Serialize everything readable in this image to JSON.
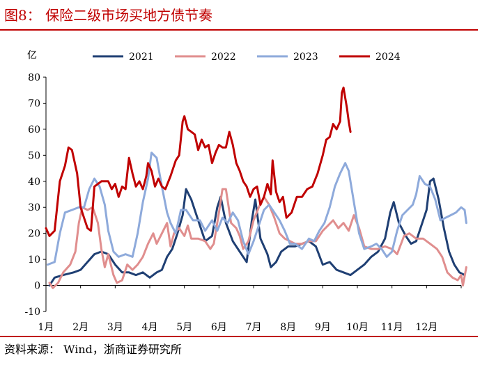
{
  "header": {
    "title": "图8：  保险二级市场买地方债节奏"
  },
  "footer": {
    "source": "资料来源：  Wind，浙商证券研究所"
  },
  "chart_data": {
    "type": "line",
    "title": "保险二级市场买地方债节奏",
    "unit": "亿",
    "xlabel": "",
    "ylabel": "亿",
    "xlim": [
      1,
      13
    ],
    "ylim": [
      -10,
      80
    ],
    "yticks": [
      -10,
      0,
      10,
      20,
      30,
      40,
      50,
      60,
      70,
      80
    ],
    "month_labels": [
      "1月",
      "2月",
      "3月",
      "4月",
      "5月",
      "6月",
      "7月",
      "8月",
      "9月",
      "10月",
      "11月",
      "12月"
    ],
    "legend": {
      "position": "top"
    },
    "grid": false,
    "series": [
      {
        "name": "2021",
        "color": "#1f3f73",
        "points": [
          [
            1.1,
            0
          ],
          [
            1.25,
            3
          ],
          [
            1.5,
            4
          ],
          [
            1.8,
            5
          ],
          [
            2.0,
            6
          ],
          [
            2.2,
            9
          ],
          [
            2.4,
            12
          ],
          [
            2.6,
            13
          ],
          [
            2.8,
            12
          ],
          [
            3.0,
            8
          ],
          [
            3.2,
            5
          ],
          [
            3.4,
            5
          ],
          [
            3.6,
            4
          ],
          [
            3.8,
            5
          ],
          [
            4.0,
            3
          ],
          [
            4.2,
            5
          ],
          [
            4.35,
            6
          ],
          [
            4.5,
            11
          ],
          [
            4.65,
            14
          ],
          [
            4.8,
            20
          ],
          [
            4.95,
            27
          ],
          [
            5.05,
            37
          ],
          [
            5.2,
            33
          ],
          [
            5.4,
            25
          ],
          [
            5.6,
            17
          ],
          [
            5.8,
            19
          ],
          [
            5.95,
            30
          ],
          [
            6.05,
            34
          ],
          [
            6.2,
            24
          ],
          [
            6.4,
            17
          ],
          [
            6.6,
            13
          ],
          [
            6.8,
            9
          ],
          [
            6.95,
            25
          ],
          [
            7.05,
            33
          ],
          [
            7.2,
            18
          ],
          [
            7.4,
            12
          ],
          [
            7.5,
            7
          ],
          [
            7.65,
            9
          ],
          [
            7.8,
            13
          ],
          [
            8.0,
            15
          ],
          [
            8.2,
            15
          ],
          [
            8.4,
            16
          ],
          [
            8.6,
            17
          ],
          [
            8.8,
            15
          ],
          [
            9.0,
            8
          ],
          [
            9.2,
            9
          ],
          [
            9.4,
            6
          ],
          [
            9.6,
            5
          ],
          [
            9.8,
            4
          ],
          [
            10.0,
            6
          ],
          [
            10.2,
            8
          ],
          [
            10.4,
            11
          ],
          [
            10.6,
            13
          ],
          [
            10.8,
            18
          ],
          [
            10.95,
            28
          ],
          [
            11.05,
            32
          ],
          [
            11.2,
            24
          ],
          [
            11.4,
            19
          ],
          [
            11.55,
            16
          ],
          [
            11.7,
            17
          ],
          [
            11.85,
            23
          ],
          [
            12.0,
            29
          ],
          [
            12.1,
            40
          ],
          [
            12.2,
            41
          ],
          [
            12.35,
            33
          ],
          [
            12.5,
            22
          ],
          [
            12.65,
            13
          ],
          [
            12.8,
            8
          ],
          [
            12.95,
            5
          ],
          [
            13.1,
            4
          ]
        ]
      },
      {
        "name": "2022",
        "color": "#e08e8e",
        "points": [
          [
            1.1,
            1
          ],
          [
            1.2,
            -1
          ],
          [
            1.35,
            1
          ],
          [
            1.5,
            5
          ],
          [
            1.7,
            8
          ],
          [
            1.85,
            13
          ],
          [
            1.95,
            24
          ],
          [
            2.05,
            30
          ],
          [
            2.2,
            29
          ],
          [
            2.35,
            30
          ],
          [
            2.5,
            24
          ],
          [
            2.6,
            14
          ],
          [
            2.7,
            7
          ],
          [
            2.8,
            12
          ],
          [
            2.95,
            4
          ],
          [
            3.05,
            1
          ],
          [
            3.2,
            2
          ],
          [
            3.35,
            8
          ],
          [
            3.5,
            6
          ],
          [
            3.65,
            8
          ],
          [
            3.8,
            11
          ],
          [
            3.95,
            16
          ],
          [
            4.1,
            20
          ],
          [
            4.2,
            16
          ],
          [
            4.35,
            20
          ],
          [
            4.5,
            24
          ],
          [
            4.6,
            15
          ],
          [
            4.7,
            20
          ],
          [
            4.85,
            22
          ],
          [
            5.0,
            19
          ],
          [
            5.1,
            23
          ],
          [
            5.2,
            18
          ],
          [
            5.4,
            18
          ],
          [
            5.6,
            17
          ],
          [
            5.75,
            14
          ],
          [
            5.85,
            16
          ],
          [
            6.0,
            28
          ],
          [
            6.1,
            37
          ],
          [
            6.2,
            37
          ],
          [
            6.35,
            24
          ],
          [
            6.5,
            22
          ],
          [
            6.6,
            19
          ],
          [
            6.7,
            14
          ],
          [
            6.85,
            17
          ],
          [
            7.0,
            25
          ],
          [
            7.15,
            30
          ],
          [
            7.3,
            34
          ],
          [
            7.45,
            31
          ],
          [
            7.6,
            26
          ],
          [
            7.75,
            20
          ],
          [
            7.9,
            18
          ],
          [
            8.05,
            17
          ],
          [
            8.2,
            16
          ],
          [
            8.4,
            16
          ],
          [
            8.6,
            17
          ],
          [
            8.8,
            17
          ],
          [
            9.0,
            21
          ],
          [
            9.15,
            23
          ],
          [
            9.3,
            25
          ],
          [
            9.45,
            22
          ],
          [
            9.6,
            24
          ],
          [
            9.75,
            21
          ],
          [
            9.9,
            27
          ],
          [
            10.05,
            22
          ],
          [
            10.2,
            15
          ],
          [
            10.4,
            14
          ],
          [
            10.6,
            14
          ],
          [
            10.8,
            15
          ],
          [
            11.0,
            14
          ],
          [
            11.15,
            12
          ],
          [
            11.35,
            19
          ],
          [
            11.5,
            20
          ],
          [
            11.7,
            18
          ],
          [
            11.9,
            18
          ],
          [
            12.1,
            16
          ],
          [
            12.3,
            14
          ],
          [
            12.45,
            11
          ],
          [
            12.6,
            5
          ],
          [
            12.75,
            3
          ],
          [
            12.9,
            2
          ],
          [
            13.0,
            4
          ],
          [
            13.05,
            0
          ],
          [
            13.15,
            7
          ]
        ]
      },
      {
        "name": "2023",
        "color": "#8eaadb",
        "points": [
          [
            1.05,
            8
          ],
          [
            1.25,
            9
          ],
          [
            1.4,
            20
          ],
          [
            1.55,
            28
          ],
          [
            1.75,
            29
          ],
          [
            1.95,
            30
          ],
          [
            2.1,
            30
          ],
          [
            2.25,
            37
          ],
          [
            2.4,
            41
          ],
          [
            2.55,
            38
          ],
          [
            2.7,
            31
          ],
          [
            2.8,
            21
          ],
          [
            2.95,
            13
          ],
          [
            3.1,
            11
          ],
          [
            3.3,
            12
          ],
          [
            3.5,
            11
          ],
          [
            3.65,
            20
          ],
          [
            3.8,
            32
          ],
          [
            3.95,
            41
          ],
          [
            4.05,
            51
          ],
          [
            4.2,
            49
          ],
          [
            4.35,
            38
          ],
          [
            4.5,
            28
          ],
          [
            4.6,
            24
          ],
          [
            4.75,
            20
          ],
          [
            4.9,
            29
          ],
          [
            5.05,
            29
          ],
          [
            5.25,
            25
          ],
          [
            5.45,
            25
          ],
          [
            5.6,
            21
          ],
          [
            5.8,
            25
          ],
          [
            5.95,
            21
          ],
          [
            6.1,
            26
          ],
          [
            6.25,
            24
          ],
          [
            6.4,
            28
          ],
          [
            6.55,
            25
          ],
          [
            6.7,
            17
          ],
          [
            6.85,
            12
          ],
          [
            7.0,
            17
          ],
          [
            7.15,
            23
          ],
          [
            7.3,
            29
          ],
          [
            7.45,
            31
          ],
          [
            7.6,
            28
          ],
          [
            7.75,
            25
          ],
          [
            7.9,
            21
          ],
          [
            8.05,
            16
          ],
          [
            8.2,
            16
          ],
          [
            8.4,
            14
          ],
          [
            8.6,
            18
          ],
          [
            8.75,
            17
          ],
          [
            8.9,
            21
          ],
          [
            9.05,
            24
          ],
          [
            9.2,
            30
          ],
          [
            9.35,
            38
          ],
          [
            9.5,
            43
          ],
          [
            9.65,
            47
          ],
          [
            9.75,
            44
          ],
          [
            9.9,
            32
          ],
          [
            10.05,
            20
          ],
          [
            10.2,
            14
          ],
          [
            10.4,
            15
          ],
          [
            10.55,
            16
          ],
          [
            10.7,
            14
          ],
          [
            10.85,
            11
          ],
          [
            11.0,
            13
          ],
          [
            11.15,
            21
          ],
          [
            11.3,
            27
          ],
          [
            11.45,
            29
          ],
          [
            11.6,
            31
          ],
          [
            11.7,
            35
          ],
          [
            11.8,
            42
          ],
          [
            11.95,
            39
          ],
          [
            12.1,
            38
          ],
          [
            12.25,
            33
          ],
          [
            12.4,
            25
          ],
          [
            12.55,
            26
          ],
          [
            12.7,
            27
          ],
          [
            12.85,
            28
          ],
          [
            13.0,
            30
          ],
          [
            13.1,
            29
          ],
          [
            13.15,
            24
          ]
        ]
      },
      {
        "name": "2024",
        "color": "#c00000",
        "points": [
          [
            1.0,
            22
          ],
          [
            1.1,
            19
          ],
          [
            1.25,
            21
          ],
          [
            1.4,
            40
          ],
          [
            1.55,
            46
          ],
          [
            1.65,
            53
          ],
          [
            1.75,
            52
          ],
          [
            1.9,
            43
          ],
          [
            2.0,
            30
          ],
          [
            2.1,
            26
          ],
          [
            2.2,
            22
          ],
          [
            2.3,
            21
          ],
          [
            2.4,
            38
          ],
          [
            2.6,
            40
          ],
          [
            2.8,
            40
          ],
          [
            2.9,
            37
          ],
          [
            3.0,
            39
          ],
          [
            3.1,
            34
          ],
          [
            3.2,
            38
          ],
          [
            3.3,
            37
          ],
          [
            3.4,
            49
          ],
          [
            3.5,
            43
          ],
          [
            3.6,
            38
          ],
          [
            3.7,
            40
          ],
          [
            3.8,
            37
          ],
          [
            3.9,
            42
          ],
          [
            3.95,
            47
          ],
          [
            4.05,
            44
          ],
          [
            4.15,
            38
          ],
          [
            4.25,
            41
          ],
          [
            4.35,
            38
          ],
          [
            4.45,
            37
          ],
          [
            4.6,
            42
          ],
          [
            4.75,
            48
          ],
          [
            4.85,
            50
          ],
          [
            4.95,
            63
          ],
          [
            5.0,
            65
          ],
          [
            5.1,
            60
          ],
          [
            5.2,
            59
          ],
          [
            5.3,
            58
          ],
          [
            5.4,
            52
          ],
          [
            5.5,
            56
          ],
          [
            5.6,
            53
          ],
          [
            5.7,
            54
          ],
          [
            5.8,
            47
          ],
          [
            5.9,
            51
          ],
          [
            6.0,
            54
          ],
          [
            6.1,
            53
          ],
          [
            6.2,
            53
          ],
          [
            6.3,
            59
          ],
          [
            6.4,
            54
          ],
          [
            6.5,
            47
          ],
          [
            6.6,
            44
          ],
          [
            6.7,
            40
          ],
          [
            6.8,
            38
          ],
          [
            6.9,
            34
          ],
          [
            7.0,
            37
          ],
          [
            7.1,
            38
          ],
          [
            7.2,
            31
          ],
          [
            7.3,
            34
          ],
          [
            7.4,
            39
          ],
          [
            7.5,
            35
          ],
          [
            7.55,
            48
          ],
          [
            7.65,
            36
          ],
          [
            7.75,
            32
          ],
          [
            7.85,
            34
          ],
          [
            7.95,
            26
          ],
          [
            8.1,
            28
          ],
          [
            8.25,
            34
          ],
          [
            8.4,
            34
          ],
          [
            8.55,
            37
          ],
          [
            8.7,
            38
          ],
          [
            8.85,
            43
          ],
          [
            9.0,
            50
          ],
          [
            9.1,
            56
          ],
          [
            9.2,
            57
          ],
          [
            9.3,
            62
          ],
          [
            9.4,
            60
          ],
          [
            9.5,
            63
          ],
          [
            9.55,
            74
          ],
          [
            9.6,
            76
          ],
          [
            9.7,
            68
          ],
          [
            9.75,
            63
          ],
          [
            9.8,
            59
          ]
        ]
      }
    ]
  }
}
